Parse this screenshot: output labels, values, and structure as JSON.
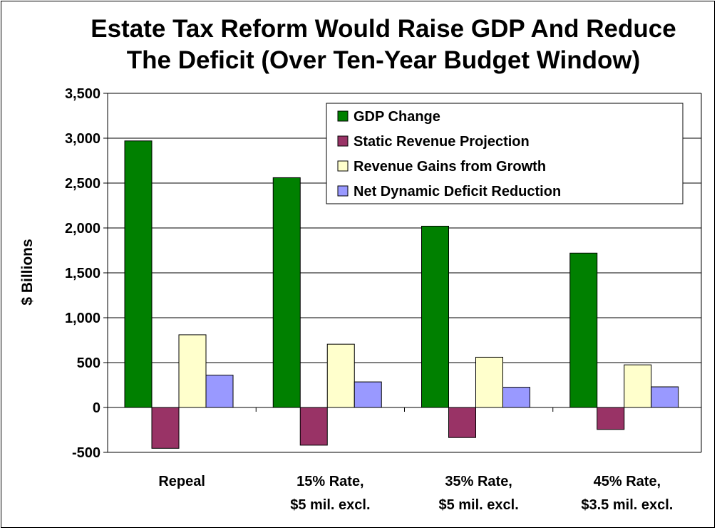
{
  "chart_data": {
    "type": "bar",
    "title_lines": [
      "Estate Tax Reform Would Raise GDP And Reduce",
      "The Deficit (Over Ten-Year Budget Window)"
    ],
    "ylabel": "$ Billions",
    "xlabel": "",
    "ylim": [
      -500,
      3500
    ],
    "ytick_values": [
      -500,
      0,
      500,
      1000,
      1500,
      2000,
      2500,
      3000,
      3500
    ],
    "ytick_labels": [
      "-500",
      "0",
      "500",
      "1,000",
      "1,500",
      "2,000",
      "2,500",
      "3,000",
      "3,500"
    ],
    "grid": "horizontal",
    "legend_position": "top-right",
    "categories": [
      [
        "Repeal"
      ],
      [
        "15% Rate,",
        "$5 mil. excl."
      ],
      [
        "35% Rate,",
        "$5 mil. excl."
      ],
      [
        "45% Rate,",
        "$3.5 mil. excl."
      ]
    ],
    "series": [
      {
        "name": "GDP Change",
        "color": "#008000",
        "values": [
          2970,
          2560,
          2020,
          1720
        ]
      },
      {
        "name": "Static Revenue Projection",
        "color": "#993366",
        "values": [
          -455,
          -420,
          -335,
          -245
        ]
      },
      {
        "name": "Revenue Gains from Growth",
        "color": "#ffffcc",
        "values": [
          810,
          705,
          560,
          475
        ]
      },
      {
        "name": "Net Dynamic Deficit Reduction",
        "color": "#9999ff",
        "values": [
          360,
          285,
          225,
          230
        ]
      }
    ]
  }
}
